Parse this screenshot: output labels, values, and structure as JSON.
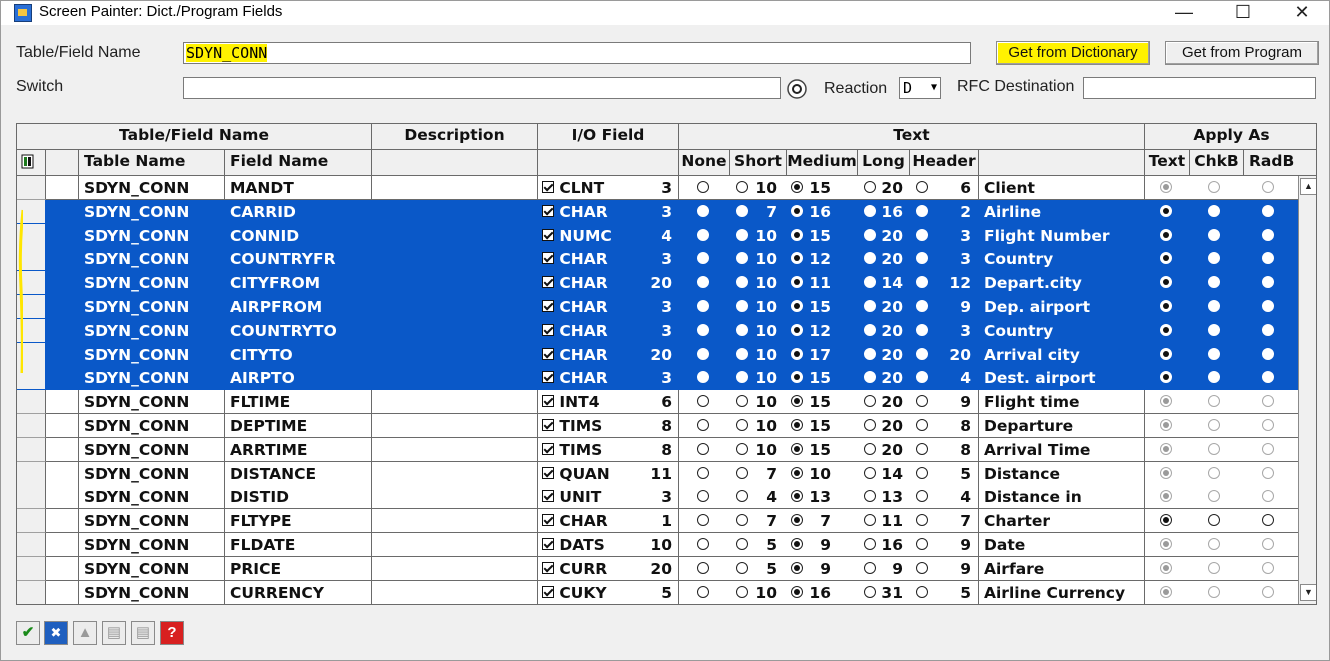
{
  "window": {
    "title": "Screen Painter: Dict./Program Fields",
    "minimize": "—",
    "maximize": "☐",
    "close": "✕"
  },
  "form": {
    "table_field_label": "Table/Field Name",
    "table_field_value": "SDYN_CONN",
    "get_from_dictionary": "Get from Dictionary",
    "get_from_program": "Get from Program",
    "switch_label": "Switch",
    "switch_value": "",
    "reaction_label": "Reaction",
    "reaction_value": "D",
    "rfc_label": "RFC Destination",
    "rfc_value": ""
  },
  "grid": {
    "group_headers": {
      "table_field_name": "Table/Field Name",
      "description": "Description",
      "io_field": "I/O Field",
      "text": "Text",
      "apply_as": "Apply As"
    },
    "sub_headers": {
      "table_name": "Table Name",
      "field_name": "Field Name",
      "none": "None",
      "short": "Short",
      "medium": "Medium",
      "long": "Long",
      "header": "Header",
      "text": "Text",
      "chkb": "ChkB",
      "radb": "RadB"
    },
    "rows": [
      {
        "table": "SDYN_CONN",
        "field": "MANDT",
        "type": "CLNT",
        "len": "3",
        "short": "10",
        "medium": "15",
        "long": "20",
        "header": "6",
        "text": "Client",
        "sel": false,
        "pick": "medium",
        "dim": true
      },
      {
        "table": "SDYN_CONN",
        "field": "CARRID",
        "type": "CHAR",
        "len": "3",
        "short": "7",
        "medium": "16",
        "long": "16",
        "header": "2",
        "text": "Airline",
        "sel": true,
        "pick": "medium",
        "dim": false
      },
      {
        "table": "SDYN_CONN",
        "field": "CONNID",
        "type": "NUMC",
        "len": "4",
        "short": "10",
        "medium": "15",
        "long": "20",
        "header": "3",
        "text": "Flight Number",
        "sel": true,
        "pick": "medium",
        "dim": false
      },
      {
        "table": "SDYN_CONN",
        "field": "COUNTRYFR",
        "type": "CHAR",
        "len": "3",
        "short": "10",
        "medium": "12",
        "long": "20",
        "header": "3",
        "text": "Country",
        "sel": true,
        "pick": "medium",
        "dim": false
      },
      {
        "table": "SDYN_CONN",
        "field": "CITYFROM",
        "type": "CHAR",
        "len": "20",
        "short": "10",
        "medium": "11",
        "long": "14",
        "header": "12",
        "text": "Depart.city",
        "sel": true,
        "pick": "medium",
        "dim": false
      },
      {
        "table": "SDYN_CONN",
        "field": "AIRPFROM",
        "type": "CHAR",
        "len": "3",
        "short": "10",
        "medium": "15",
        "long": "20",
        "header": "9",
        "text": "Dep. airport",
        "sel": true,
        "pick": "medium",
        "dim": false
      },
      {
        "table": "SDYN_CONN",
        "field": "COUNTRYTO",
        "type": "CHAR",
        "len": "3",
        "short": "10",
        "medium": "12",
        "long": "20",
        "header": "3",
        "text": "Country",
        "sel": true,
        "pick": "medium",
        "dim": false
      },
      {
        "table": "SDYN_CONN",
        "field": "CITYTO",
        "type": "CHAR",
        "len": "20",
        "short": "10",
        "medium": "17",
        "long": "20",
        "header": "20",
        "text": "Arrival city",
        "sel": true,
        "pick": "medium",
        "dim": false
      },
      {
        "table": "SDYN_CONN",
        "field": "AIRPTO",
        "type": "CHAR",
        "len": "3",
        "short": "10",
        "medium": "15",
        "long": "20",
        "header": "4",
        "text": "Dest. airport",
        "sel": true,
        "pick": "medium",
        "dim": false
      },
      {
        "table": "SDYN_CONN",
        "field": "FLTIME",
        "type": "INT4",
        "len": "6",
        "short": "10",
        "medium": "15",
        "long": "20",
        "header": "9",
        "text": "Flight time",
        "sel": false,
        "pick": "medium",
        "dim": true
      },
      {
        "table": "SDYN_CONN",
        "field": "DEPTIME",
        "type": "TIMS",
        "len": "8",
        "short": "10",
        "medium": "15",
        "long": "20",
        "header": "8",
        "text": "Departure",
        "sel": false,
        "pick": "medium",
        "dim": true
      },
      {
        "table": "SDYN_CONN",
        "field": "ARRTIME",
        "type": "TIMS",
        "len": "8",
        "short": "10",
        "medium": "15",
        "long": "20",
        "header": "8",
        "text": "Arrival Time",
        "sel": false,
        "pick": "medium",
        "dim": true
      },
      {
        "table": "SDYN_CONN",
        "field": "DISTANCE",
        "type": "QUAN",
        "len": "11",
        "short": "7",
        "medium": "10",
        "long": "14",
        "header": "5",
        "text": "Distance",
        "sel": false,
        "pick": "medium",
        "dim": true
      },
      {
        "table": "SDYN_CONN",
        "field": "DISTID",
        "type": "UNIT",
        "len": "3",
        "short": "4",
        "medium": "13",
        "long": "13",
        "header": "4",
        "text": "Distance in",
        "sel": false,
        "pick": "medium",
        "dim": true
      },
      {
        "table": "SDYN_CONN",
        "field": "FLTYPE",
        "type": "CHAR",
        "len": "1",
        "short": "7",
        "medium": "7",
        "long": "11",
        "header": "7",
        "text": "Charter",
        "sel": false,
        "pick": "medium",
        "dim": false
      },
      {
        "table": "SDYN_CONN",
        "field": "FLDATE",
        "type": "DATS",
        "len": "10",
        "short": "5",
        "medium": "9",
        "long": "16",
        "header": "9",
        "text": "Date",
        "sel": false,
        "pick": "medium",
        "dim": true
      },
      {
        "table": "SDYN_CONN",
        "field": "PRICE",
        "type": "CURR",
        "len": "20",
        "short": "5",
        "medium": "9",
        "long": "9",
        "header": "9",
        "text": "Airfare",
        "sel": false,
        "pick": "medium",
        "dim": true
      },
      {
        "table": "SDYN_CONN",
        "field": "CURRENCY",
        "type": "CUKY",
        "len": "5",
        "short": "10",
        "medium": "16",
        "long": "31",
        "header": "5",
        "text": "Airline Currency",
        "sel": false,
        "pick": "medium",
        "dim": true
      }
    ]
  },
  "icons": {
    "grid_settings": "grid-settings-icon",
    "ok": "✔",
    "cancel": "✖",
    "help": "?"
  },
  "colors": {
    "selection": "#0a58c8",
    "highlight": "#fff200"
  }
}
